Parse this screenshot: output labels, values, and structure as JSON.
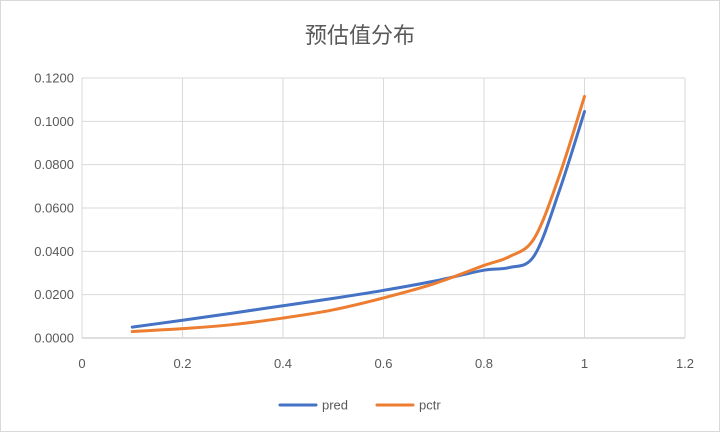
{
  "chart_data": {
    "type": "line",
    "title": "预估值分布",
    "xlim": [
      0,
      1.2
    ],
    "ylim": [
      0,
      0.12
    ],
    "x_ticks": [
      "0",
      "0.2",
      "0.4",
      "0.6",
      "0.8",
      "1",
      "1.2"
    ],
    "y_ticks": [
      "0.0000",
      "0.0200",
      "0.0400",
      "0.0600",
      "0.0800",
      "0.1000",
      "0.1200"
    ],
    "x_tick_values": [
      0,
      0.2,
      0.4,
      0.6,
      0.8,
      1.0,
      1.2
    ],
    "y_tick_values": [
      0,
      0.02,
      0.04,
      0.06,
      0.08,
      0.1,
      0.12
    ],
    "grid": "vertical and horizontal",
    "legend_position": "bottom",
    "series": [
      {
        "name": "pred",
        "color": "#4472C4",
        "x": [
          0.1,
          0.2,
          0.3,
          0.4,
          0.5,
          0.6,
          0.7,
          0.8,
          0.85,
          0.9,
          0.95,
          1.0
        ],
        "y": [
          0.005,
          0.0082,
          0.0115,
          0.0149,
          0.0183,
          0.022,
          0.0262,
          0.0313,
          0.0325,
          0.038,
          0.068,
          0.1045
        ]
      },
      {
        "name": "pctr",
        "color": "#ED7D31",
        "x": [
          0.1,
          0.2,
          0.3,
          0.4,
          0.5,
          0.6,
          0.7,
          0.8,
          0.85,
          0.9,
          0.95,
          1.0
        ],
        "y": [
          0.003,
          0.0043,
          0.0062,
          0.0092,
          0.013,
          0.0185,
          0.025,
          0.0335,
          0.0375,
          0.046,
          0.075,
          0.1115
        ]
      }
    ]
  }
}
